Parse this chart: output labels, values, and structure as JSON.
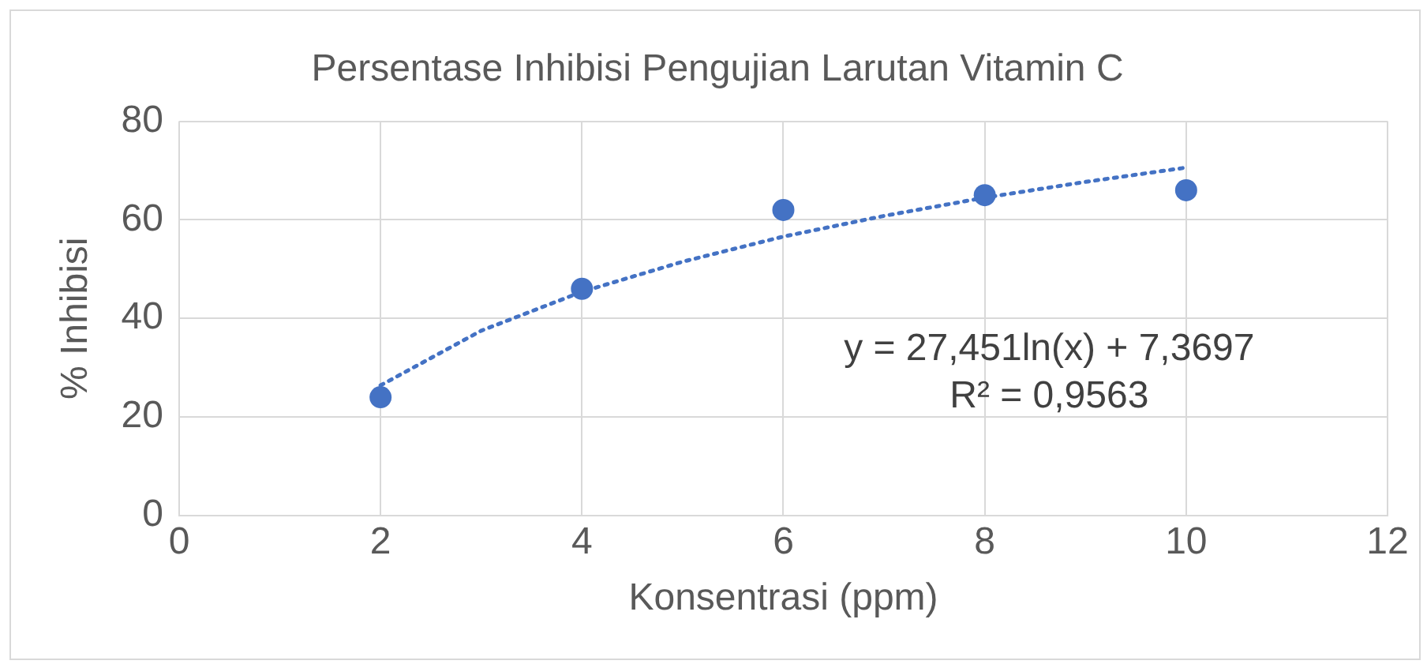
{
  "chart_data": {
    "type": "scatter",
    "title": "Persentase Inhibisi Pengujian Larutan Vitamin C",
    "xlabel": "Konsentrasi (ppm)",
    "ylabel": "% Inhibisi",
    "x": [
      2,
      4,
      6,
      8,
      10
    ],
    "series": [
      {
        "color": "#4472c4",
        "marker": "circle",
        "values": [
          24,
          46,
          62,
          65,
          66
        ]
      },
      {
        "type": "line",
        "color": "#4472c4",
        "line_style": "dotted",
        "marker": "none",
        "x": [
          2,
          3,
          4,
          5,
          6,
          7,
          8,
          9,
          10
        ],
        "values": [
          26.4,
          37.5,
          45.4,
          51.5,
          56.6,
          60.8,
          64.5,
          67.7,
          70.6
        ]
      }
    ],
    "xlim": [
      0,
      12
    ],
    "xticks": [
      0,
      2,
      4,
      6,
      8,
      10,
      12
    ],
    "ylim": [
      0,
      80
    ],
    "yticks": [
      0,
      20,
      40,
      60,
      80
    ],
    "grid": true,
    "legend": false,
    "annotations": [
      "y = 27,451ln(x) + 7,3697",
      "R² = 0,9563"
    ]
  }
}
